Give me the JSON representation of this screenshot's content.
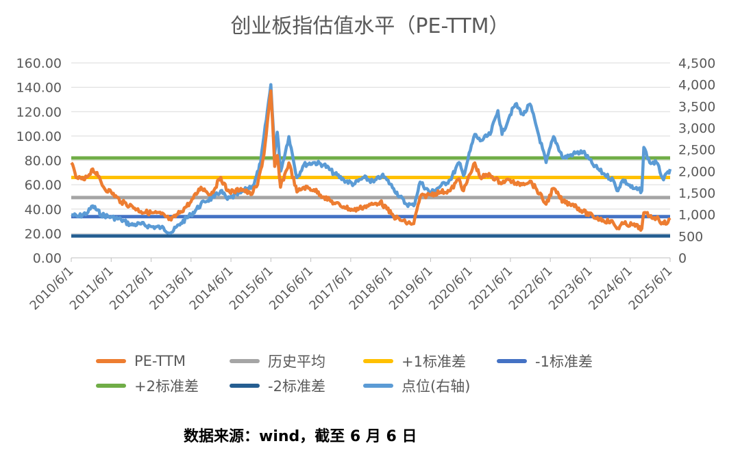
{
  "chart_data": {
    "type": "line",
    "title": "创业板指估值水平（PE-TTM）",
    "left_axis": {
      "ylim": [
        0,
        160
      ],
      "ticks": [
        "0.00",
        "20.00",
        "40.00",
        "60.00",
        "80.00",
        "100.00",
        "120.00",
        "140.00",
        "160.00"
      ]
    },
    "right_axis": {
      "ylim": [
        0,
        4500
      ],
      "ticks": [
        "0",
        "500",
        "1,000",
        "1,500",
        "2,000",
        "2,500",
        "3,000",
        "3,500",
        "4,000",
        "4,500"
      ]
    },
    "x_ticks": [
      "2010/6/1",
      "2011/6/1",
      "2012/6/1",
      "2013/6/1",
      "2014/6/1",
      "2015/6/1",
      "2016/6/1",
      "2017/6/1",
      "2018/6/1",
      "2019/6/1",
      "2020/6/1",
      "2021/6/1",
      "2022/6/1",
      "2023/6/1",
      "2024/6/1",
      "2025/6/1"
    ],
    "x_range": [
      "2010-06-01",
      "2025-06-06"
    ],
    "grid": true,
    "legend_position": "bottom",
    "reference_lines": [
      {
        "name": "历史平均",
        "value": 49.5,
        "color": "#a5a5a5"
      },
      {
        "name": "+1标准差",
        "value": 66.0,
        "color": "#ffc000"
      },
      {
        "name": "-1标准差",
        "value": 33.8,
        "color": "#4472c4"
      },
      {
        "name": "+2标准差",
        "value": 82.0,
        "color": "#70ad47"
      },
      {
        "name": "-2标准差",
        "value": 18.0,
        "color": "#255e91"
      }
    ],
    "series": [
      {
        "name": "PE-TTM",
        "axis": "left",
        "color": "#ed7d31",
        "points": [
          [
            "2010-06-01",
            78
          ],
          [
            "2010-07-15",
            66
          ],
          [
            "2010-10-01",
            64
          ],
          [
            "2010-12-15",
            73
          ],
          [
            "2011-02-01",
            67
          ],
          [
            "2011-04-01",
            57
          ],
          [
            "2011-06-01",
            54
          ],
          [
            "2011-09-01",
            46
          ],
          [
            "2011-12-15",
            42
          ],
          [
            "2012-03-01",
            38
          ],
          [
            "2012-06-01",
            37
          ],
          [
            "2012-09-01",
            36
          ],
          [
            "2012-12-01",
            31
          ],
          [
            "2013-03-01",
            38
          ],
          [
            "2013-06-01",
            46
          ],
          [
            "2013-09-01",
            58
          ],
          [
            "2013-12-01",
            52
          ],
          [
            "2014-03-01",
            66
          ],
          [
            "2014-05-01",
            55
          ],
          [
            "2014-07-01",
            54
          ],
          [
            "2014-09-01",
            57
          ],
          [
            "2014-12-01",
            52
          ],
          [
            "2015-02-01",
            60
          ],
          [
            "2015-04-01",
            85
          ],
          [
            "2015-06-03",
            137
          ],
          [
            "2015-07-08",
            75
          ],
          [
            "2015-08-01",
            84
          ],
          [
            "2015-08-30",
            58
          ],
          [
            "2015-11-15",
            78
          ],
          [
            "2016-01-28",
            54
          ],
          [
            "2016-04-01",
            58
          ],
          [
            "2016-07-01",
            56
          ],
          [
            "2016-10-01",
            50
          ],
          [
            "2017-01-01",
            45
          ],
          [
            "2017-04-01",
            42
          ],
          [
            "2017-07-01",
            39
          ],
          [
            "2017-10-01",
            42
          ],
          [
            "2018-01-01",
            44
          ],
          [
            "2018-03-01",
            46
          ],
          [
            "2018-05-01",
            40
          ],
          [
            "2018-07-01",
            34
          ],
          [
            "2018-10-19",
            29
          ],
          [
            "2019-01-01",
            28
          ],
          [
            "2019-03-01",
            50
          ],
          [
            "2019-06-01",
            52
          ],
          [
            "2019-09-01",
            54
          ],
          [
            "2019-12-01",
            55
          ],
          [
            "2020-02-20",
            65
          ],
          [
            "2020-04-01",
            55
          ],
          [
            "2020-07-13",
            78
          ],
          [
            "2020-09-01",
            66
          ],
          [
            "2020-12-01",
            68
          ],
          [
            "2021-03-01",
            62
          ],
          [
            "2021-06-01",
            64
          ],
          [
            "2021-08-01",
            60
          ],
          [
            "2021-12-01",
            63
          ],
          [
            "2022-02-01",
            56
          ],
          [
            "2022-04-27",
            44
          ],
          [
            "2022-07-01",
            57
          ],
          [
            "2022-10-01",
            46
          ],
          [
            "2023-01-01",
            44
          ],
          [
            "2023-04-01",
            38
          ],
          [
            "2023-07-01",
            34
          ],
          [
            "2023-10-01",
            31
          ],
          [
            "2024-01-01",
            29
          ],
          [
            "2024-02-05",
            24
          ],
          [
            "2024-04-01",
            28
          ],
          [
            "2024-07-01",
            27
          ],
          [
            "2024-09-20",
            24
          ],
          [
            "2024-10-08",
            37
          ],
          [
            "2024-12-01",
            34
          ],
          [
            "2025-02-01",
            33
          ],
          [
            "2025-04-07",
            28
          ],
          [
            "2025-06-06",
            31
          ]
        ]
      },
      {
        "name": "点位(右轴)",
        "axis": "right",
        "color": "#5b9bd5",
        "points": [
          [
            "2010-06-01",
            1000
          ],
          [
            "2010-08-01",
            950
          ],
          [
            "2010-11-01",
            1050
          ],
          [
            "2010-12-15",
            1200
          ],
          [
            "2011-03-01",
            1000
          ],
          [
            "2011-06-01",
            940
          ],
          [
            "2011-09-01",
            880
          ],
          [
            "2011-12-01",
            760
          ],
          [
            "2012-03-01",
            780
          ],
          [
            "2012-06-01",
            720
          ],
          [
            "2012-09-01",
            700
          ],
          [
            "2012-12-04",
            585
          ],
          [
            "2013-03-01",
            800
          ],
          [
            "2013-06-01",
            1000
          ],
          [
            "2013-10-01",
            1300
          ],
          [
            "2014-01-01",
            1400
          ],
          [
            "2014-03-01",
            1550
          ],
          [
            "2014-05-01",
            1350
          ],
          [
            "2014-09-01",
            1500
          ],
          [
            "2015-01-01",
            1700
          ],
          [
            "2015-03-01",
            2200
          ],
          [
            "2015-06-03",
            4000
          ],
          [
            "2015-07-08",
            2400
          ],
          [
            "2015-08-01",
            2900
          ],
          [
            "2015-09-01",
            2000
          ],
          [
            "2015-11-15",
            2800
          ],
          [
            "2016-01-28",
            1850
          ],
          [
            "2016-04-01",
            2150
          ],
          [
            "2016-07-01",
            2200
          ],
          [
            "2016-10-01",
            2150
          ],
          [
            "2017-01-01",
            1950
          ],
          [
            "2017-04-01",
            1800
          ],
          [
            "2017-07-01",
            1700
          ],
          [
            "2017-10-01",
            1850
          ],
          [
            "2018-01-01",
            1750
          ],
          [
            "2018-03-15",
            1900
          ],
          [
            "2018-05-01",
            1800
          ],
          [
            "2018-07-01",
            1600
          ],
          [
            "2018-10-19",
            1250
          ],
          [
            "2019-01-01",
            1200
          ],
          [
            "2019-03-01",
            1750
          ],
          [
            "2019-06-01",
            1500
          ],
          [
            "2019-09-01",
            1650
          ],
          [
            "2019-12-01",
            1800
          ],
          [
            "2020-02-20",
            2200
          ],
          [
            "2020-04-01",
            1900
          ],
          [
            "2020-07-13",
            2850
          ],
          [
            "2020-09-01",
            2700
          ],
          [
            "2020-12-01",
            2850
          ],
          [
            "2021-02-10",
            3400
          ],
          [
            "2021-03-20",
            2850
          ],
          [
            "2021-06-01",
            3300
          ],
          [
            "2021-07-20",
            3550
          ],
          [
            "2021-10-01",
            3300
          ],
          [
            "2021-12-01",
            3550
          ],
          [
            "2022-02-01",
            3000
          ],
          [
            "2022-04-27",
            2200
          ],
          [
            "2022-07-05",
            2800
          ],
          [
            "2022-10-01",
            2300
          ],
          [
            "2023-01-01",
            2400
          ],
          [
            "2023-04-01",
            2450
          ],
          [
            "2023-07-01",
            2150
          ],
          [
            "2023-10-01",
            1950
          ],
          [
            "2024-01-01",
            1800
          ],
          [
            "2024-02-05",
            1550
          ],
          [
            "2024-04-01",
            1800
          ],
          [
            "2024-07-01",
            1600
          ],
          [
            "2024-09-20",
            1550
          ],
          [
            "2024-10-08",
            2550
          ],
          [
            "2024-12-01",
            2200
          ],
          [
            "2025-02-01",
            2200
          ],
          [
            "2025-04-07",
            1800
          ],
          [
            "2025-06-06",
            2050
          ]
        ]
      }
    ]
  },
  "legend": [
    {
      "label": "PE-TTM",
      "color": "#ed7d31"
    },
    {
      "label": "历史平均",
      "color": "#a5a5a5"
    },
    {
      "label": "+1标准差",
      "color": "#ffc000"
    },
    {
      "label": "-1标准差",
      "color": "#4472c4"
    },
    {
      "label": "+2标准差",
      "color": "#70ad47"
    },
    {
      "label": "-2标准差",
      "color": "#255e91"
    },
    {
      "label": "点位(右轴)",
      "color": "#5b9bd5"
    }
  ],
  "source_note": "数据来源：wind，截至 6 月 6 日"
}
